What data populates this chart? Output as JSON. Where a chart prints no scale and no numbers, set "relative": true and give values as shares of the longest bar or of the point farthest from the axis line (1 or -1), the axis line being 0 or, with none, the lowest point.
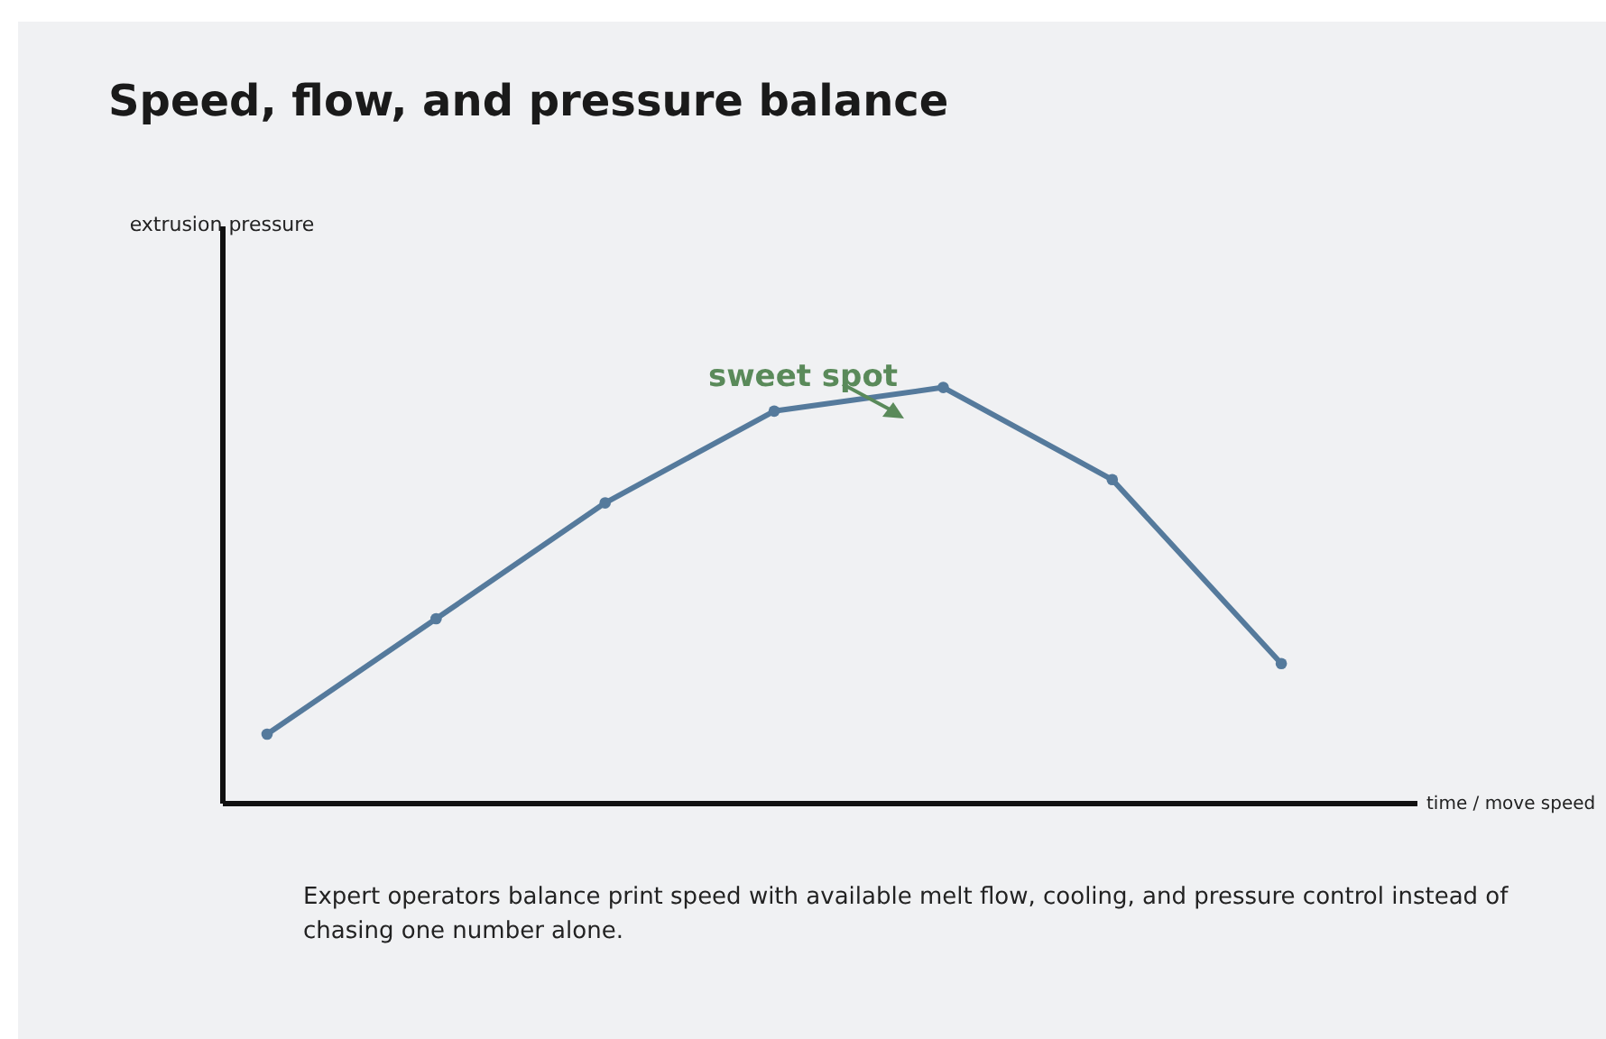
{
  "chart_data": {
    "type": "line",
    "title": "Speed, flow, and pressure balance",
    "xlabel": "time / move speed",
    "relative": true,
    "marker": "circle",
    "grid": false,
    "categories": [
      null,
      null,
      null,
      null,
      null,
      null,
      null
    ],
    "series": [
      {
        "color": "#557a9c",
        "values": [
          0.165,
          0.443,
          0.722,
          0.943,
          1,
          0.778,
          0.335
        ]
      }
    ],
    "annotations": [
      "sweet spot",
      "extrusion pressure",
      "Expert operators balance print speed with available melt flow, cooling, and pressure control instead of chasing one number alone."
    ]
  }
}
